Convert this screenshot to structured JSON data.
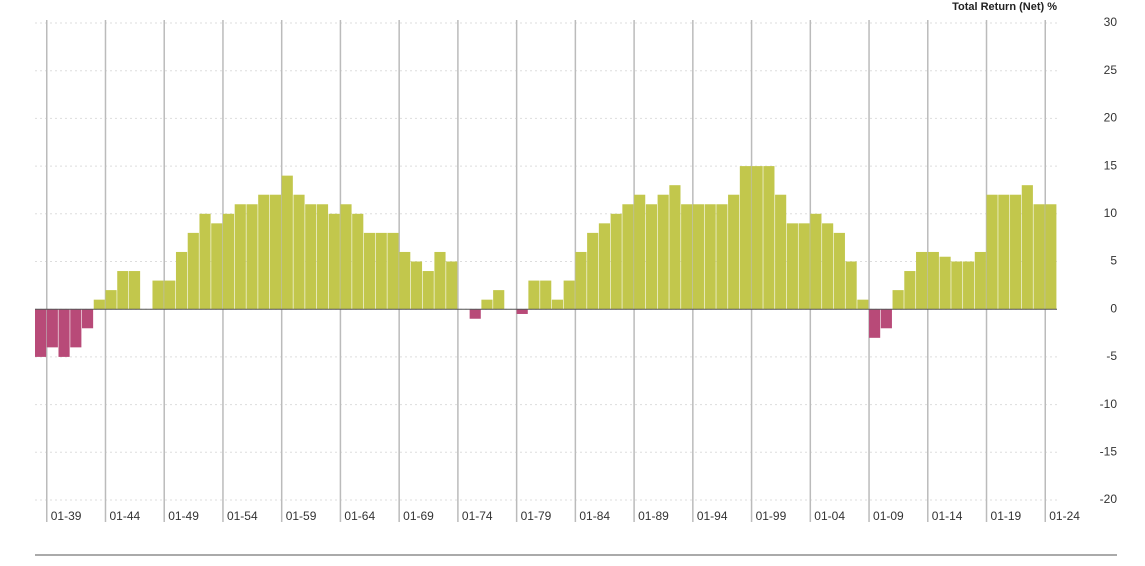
{
  "chart_data": {
    "type": "bar",
    "y_axis_title": "Total Return (Net) %",
    "categories": [
      null,
      "01-39",
      null,
      null,
      null,
      null,
      "01-44",
      null,
      null,
      null,
      null,
      "01-49",
      null,
      null,
      null,
      null,
      "01-54",
      null,
      null,
      null,
      null,
      "01-59",
      null,
      null,
      null,
      null,
      "01-64",
      null,
      null,
      null,
      null,
      "01-69",
      null,
      null,
      null,
      null,
      "01-74",
      null,
      null,
      null,
      null,
      "01-79",
      null,
      null,
      null,
      null,
      "01-84",
      null,
      null,
      null,
      null,
      "01-89",
      null,
      null,
      null,
      null,
      "01-94",
      null,
      null,
      null,
      null,
      "01-99",
      null,
      null,
      null,
      null,
      "01-04",
      null,
      null,
      null,
      null,
      "01-09",
      null,
      null,
      null,
      null,
      "01-14",
      null,
      null,
      null,
      null,
      "01-19",
      null,
      null,
      null,
      null,
      "01-24"
    ],
    "values": [
      -5,
      -4,
      -5,
      -4,
      -2,
      1,
      2,
      4,
      4,
      0,
      3,
      3,
      6,
      8,
      10,
      9,
      10,
      11,
      11,
      12,
      12,
      14,
      12,
      11,
      11,
      10,
      11,
      10,
      8,
      8,
      8,
      6,
      5,
      4,
      6,
      5,
      0,
      -1,
      1,
      2,
      0,
      -0.5,
      3,
      3,
      1,
      3,
      6,
      8,
      9,
      10,
      11,
      12,
      11,
      12,
      13,
      11,
      11,
      11,
      11,
      12,
      15,
      15,
      15,
      12,
      9,
      9,
      10,
      9,
      8,
      5,
      1,
      -3,
      -2,
      2,
      4,
      6,
      6,
      5.5,
      5,
      5,
      6,
      12,
      12,
      12,
      13,
      11,
      11
    ],
    "positive_color": "#c2c74c",
    "negative_color": "#b84a78",
    "ylim": [
      -20,
      30
    ],
    "yticks": [
      -20,
      -15,
      -10,
      -5,
      0,
      5,
      10,
      15,
      20,
      25,
      30
    ],
    "grid": true
  }
}
